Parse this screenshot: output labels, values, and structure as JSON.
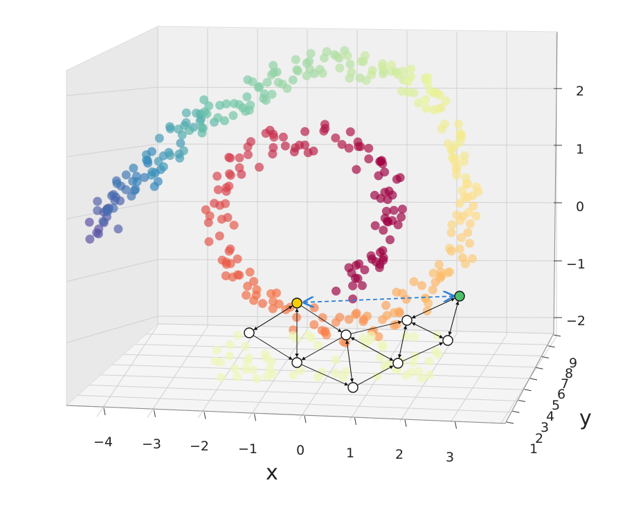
{
  "chart_data": {
    "type": "scatter",
    "projection": "3d",
    "title": "",
    "xlabel": "x",
    "ylabel": "y",
    "zlabel": "",
    "xlim": [
      -4.5,
      3.5
    ],
    "ylim": [
      1,
      9
    ],
    "zlim": [
      -2.2,
      2.4
    ],
    "x_ticks": [
      "−4",
      "−3",
      "−2",
      "−1",
      "0",
      "1",
      "2",
      "3"
    ],
    "y_ticks": [
      "1",
      "2",
      "3",
      "4",
      "5",
      "6",
      "7",
      "8",
      "9"
    ],
    "z_ticks": [
      "2",
      "1",
      "0",
      "−1",
      "−2"
    ],
    "grid": true,
    "colormap": "Spectral",
    "series": [
      {
        "points": [
          {
            "x": -4.1,
            "z": -0.5,
            "c": 0.0
          },
          {
            "x": -3.9,
            "z": -0.1,
            "c": 0.04
          },
          {
            "x": -3.5,
            "z": 0.3,
            "c": 0.08
          },
          {
            "x": -3.0,
            "z": 0.7,
            "c": 0.12
          },
          {
            "x": -2.5,
            "z": 1.05,
            "c": 0.16
          },
          {
            "x": -2.0,
            "z": 1.45,
            "c": 0.2
          },
          {
            "x": -1.4,
            "z": 1.8,
            "c": 0.24
          },
          {
            "x": -0.7,
            "z": 2.1,
            "c": 0.28
          },
          {
            "x": 0.1,
            "z": 2.35,
            "c": 0.32
          },
          {
            "x": 0.9,
            "z": 2.45,
            "c": 0.36
          },
          {
            "x": 1.7,
            "z": 2.35,
            "c": 0.4
          },
          {
            "x": 2.4,
            "z": 2.0,
            "c": 0.44
          },
          {
            "x": 2.9,
            "z": 1.4,
            "c": 0.48
          },
          {
            "x": 3.2,
            "z": 0.7,
            "c": 0.52
          },
          {
            "x": 3.3,
            "z": 0.0,
            "c": 0.56
          },
          {
            "x": 3.1,
            "z": -0.8,
            "c": 0.6
          },
          {
            "x": 2.6,
            "z": -1.5,
            "c": 0.64
          },
          {
            "x": 1.8,
            "z": -2.0,
            "c": 0.68
          },
          {
            "x": 0.8,
            "z": -2.2,
            "c": 0.72
          },
          {
            "x": -0.3,
            "z": -2.0,
            "c": 0.76
          },
          {
            "x": -1.3,
            "z": -1.3,
            "c": 0.8
          },
          {
            "x": -1.8,
            "z": -0.4,
            "c": 0.84
          },
          {
            "x": -1.5,
            "z": 0.5,
            "c": 0.88
          },
          {
            "x": -0.6,
            "z": 1.1,
            "c": 0.92
          },
          {
            "x": 0.6,
            "z": 1.2,
            "c": 0.96
          },
          {
            "x": 1.6,
            "z": 0.5,
            "c": 1.0
          },
          {
            "x": 1.8,
            "z": -0.3,
            "c": 1.0
          },
          {
            "x": 1.4,
            "z": -1.0,
            "c": 1.0
          },
          {
            "x": 0.8,
            "z": -1.5,
            "c": 1.0
          }
        ]
      }
    ],
    "graph_overlay": {
      "nodes": [
        {
          "id": "A",
          "fill": "#f5d000"
        },
        {
          "id": "B",
          "fill": "#ffffff"
        },
        {
          "id": "C",
          "fill": "#ffffff"
        },
        {
          "id": "D",
          "fill": "#ffffff"
        },
        {
          "id": "E",
          "fill": "#ffffff"
        },
        {
          "id": "F",
          "fill": "#ffffff"
        },
        {
          "id": "G",
          "fill": "#ffffff"
        },
        {
          "id": "H",
          "fill": "#ffffff"
        },
        {
          "id": "I",
          "fill": "#4fc06a"
        }
      ],
      "dashed_link": {
        "from": "A",
        "to": "I",
        "color": "#2a7fd4"
      }
    }
  }
}
